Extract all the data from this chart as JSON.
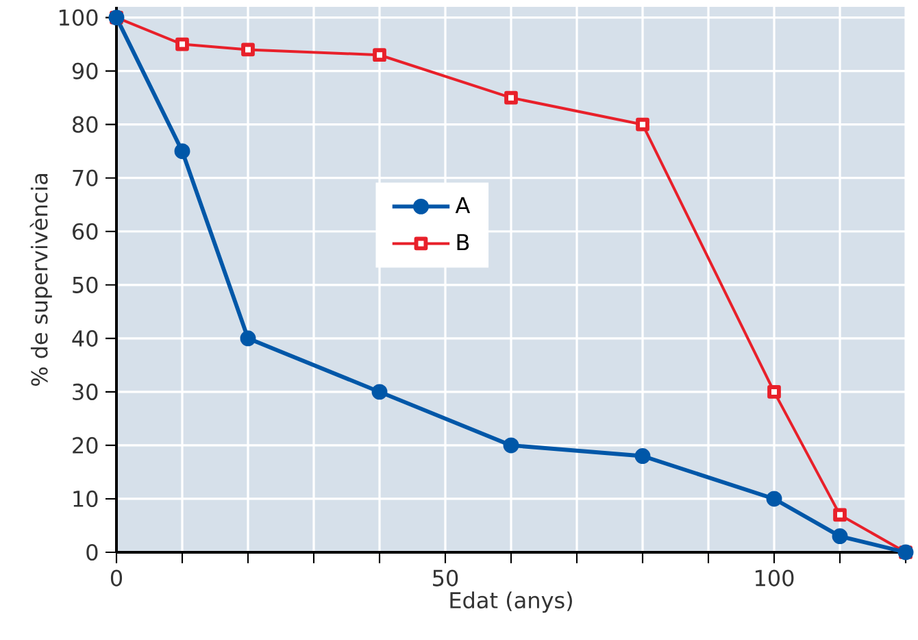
{
  "chart_data": {
    "type": "line",
    "xlabel": "Edat (anys)",
    "ylabel": "% de supervivència",
    "x": [
      0,
      10,
      20,
      40,
      60,
      80,
      100,
      110,
      120
    ],
    "series": [
      {
        "name": "A",
        "color": "#0057a8",
        "marker": "circle",
        "values": [
          100,
          75,
          40,
          30,
          20,
          18,
          10,
          3,
          0
        ]
      },
      {
        "name": "B",
        "color": "#e8202a",
        "marker": "square",
        "values": [
          100,
          95,
          94,
          93,
          85,
          80,
          30,
          7,
          0
        ]
      }
    ],
    "xlim": [
      0,
      120
    ],
    "ylim": [
      0,
      102
    ],
    "xticks": [
      0,
      {
        "value": 10,
        "label": null
      },
      {
        "value": 20,
        "label": null
      },
      {
        "value": 30,
        "label": null
      },
      {
        "value": 40,
        "label": null
      },
      50,
      {
        "value": 60,
        "label": null
      },
      {
        "value": 70,
        "label": null
      },
      {
        "value": 80,
        "label": null
      },
      {
        "value": 90,
        "label": null
      },
      100,
      {
        "value": 110,
        "label": null
      },
      {
        "value": 120,
        "label": null
      }
    ],
    "yticks": [
      0,
      10,
      20,
      30,
      40,
      50,
      60,
      70,
      80,
      90,
      100
    ],
    "grid": true,
    "legend": "center",
    "line_style": "solid"
  }
}
